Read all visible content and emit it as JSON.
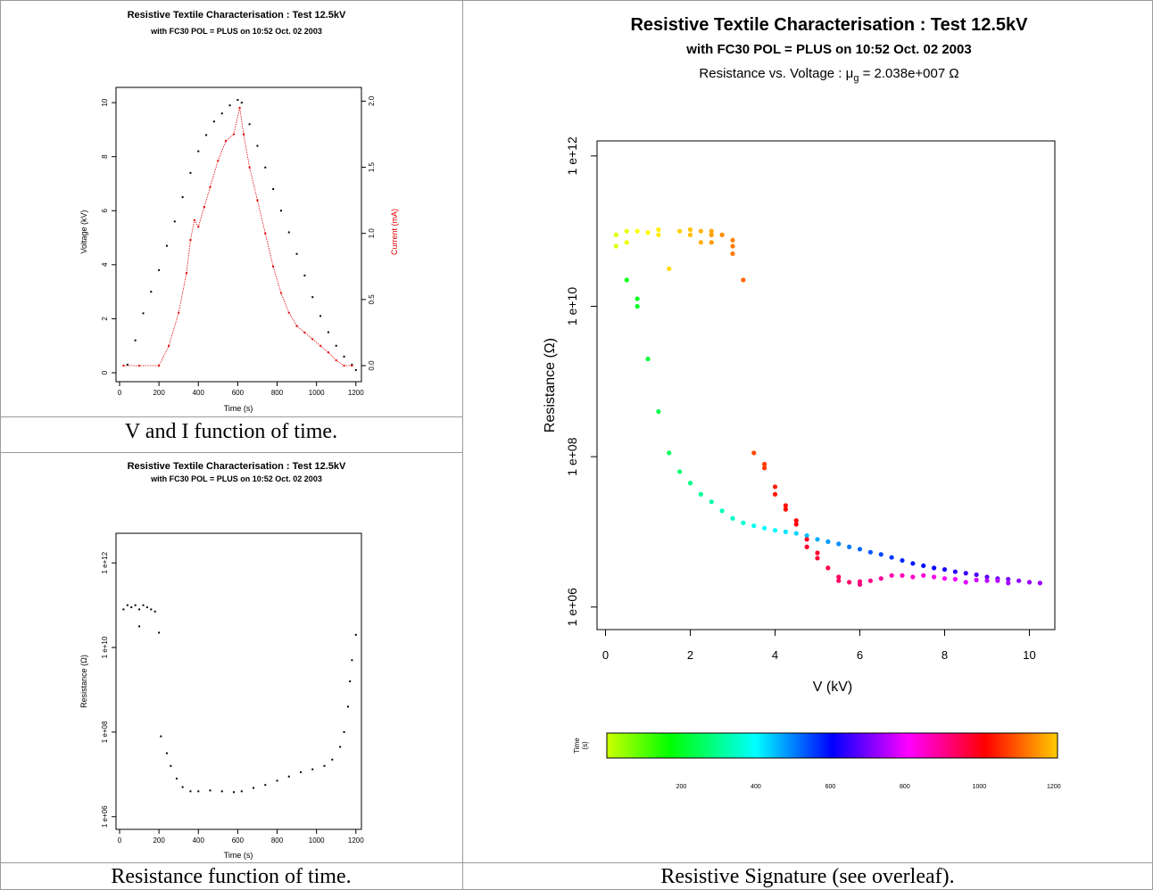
{
  "header": {
    "title": "Resistive Textile Characterisation : Test 12.5kV",
    "subtitle": "with FC30 POL = PLUS on 10:52 Oct. 02 2003"
  },
  "captions": {
    "vi": "V and I function of time.",
    "res": "Resistance function of time.",
    "sig": "Resistive Signature (see overleaf)."
  },
  "signature_subtitle_prefix": "Resistance vs. Voltage : ",
  "signature_subtitle_mu": "μ",
  "signature_subtitle_sub": "g",
  "signature_subtitle_suffix": " = 2.038e+007 Ω",
  "colorbar": {
    "label_line1": "Time",
    "label_line2": "(s)",
    "ticks": [
      "200",
      "400",
      "600",
      "800",
      "1000",
      "1200"
    ]
  },
  "chart_data": [
    {
      "id": "vi",
      "type": "scatter",
      "xlabel": "Time (s)",
      "ylabel": "Voltage (kV)",
      "ylabel_right": "Current (mA)",
      "xlim": [
        0,
        1210
      ],
      "ylim": [
        0,
        10.3
      ],
      "ylim_right": [
        0,
        2.05
      ],
      "x_ticks": [
        "0",
        "200",
        "400",
        "600",
        "800",
        "1000",
        "1200"
      ],
      "y_ticks": [
        "0",
        "2",
        "4",
        "6",
        "8",
        "10"
      ],
      "y_ticks_right": [
        "0.0",
        "0.5",
        "1.0",
        "1.5",
        "2.0"
      ],
      "series": [
        {
          "axis": "left",
          "color": "#000000",
          "points": [
            [
              40,
              0.3
            ],
            [
              80,
              1.2
            ],
            [
              120,
              2.2
            ],
            [
              160,
              3.0
            ],
            [
              200,
              3.8
            ],
            [
              240,
              4.7
            ],
            [
              280,
              5.6
            ],
            [
              320,
              6.5
            ],
            [
              360,
              7.4
            ],
            [
              400,
              8.2
            ],
            [
              440,
              8.8
            ],
            [
              480,
              9.3
            ],
            [
              520,
              9.6
            ],
            [
              560,
              9.9
            ],
            [
              600,
              10.1
            ],
            [
              620,
              10.0
            ],
            [
              660,
              9.2
            ],
            [
              700,
              8.4
            ],
            [
              740,
              7.6
            ],
            [
              780,
              6.8
            ],
            [
              820,
              6.0
            ],
            [
              860,
              5.2
            ],
            [
              900,
              4.4
            ],
            [
              940,
              3.6
            ],
            [
              980,
              2.8
            ],
            [
              1020,
              2.1
            ],
            [
              1060,
              1.5
            ],
            [
              1100,
              1.0
            ],
            [
              1140,
              0.6
            ],
            [
              1180,
              0.3
            ],
            [
              1200,
              0.1
            ]
          ]
        },
        {
          "axis": "right",
          "color": "#e00000",
          "points": [
            [
              20,
              0.0
            ],
            [
              100,
              0.0
            ],
            [
              200,
              0.0
            ],
            [
              250,
              0.15
            ],
            [
              300,
              0.4
            ],
            [
              340,
              0.7
            ],
            [
              360,
              0.95
            ],
            [
              380,
              1.1
            ],
            [
              400,
              1.05
            ],
            [
              430,
              1.2
            ],
            [
              460,
              1.35
            ],
            [
              500,
              1.55
            ],
            [
              540,
              1.7
            ],
            [
              580,
              1.75
            ],
            [
              610,
              1.95
            ],
            [
              630,
              1.75
            ],
            [
              660,
              1.5
            ],
            [
              700,
              1.25
            ],
            [
              740,
              1.0
            ],
            [
              780,
              0.75
            ],
            [
              820,
              0.55
            ],
            [
              860,
              0.4
            ],
            [
              900,
              0.3
            ],
            [
              940,
              0.25
            ],
            [
              980,
              0.2
            ],
            [
              1020,
              0.15
            ],
            [
              1060,
              0.1
            ],
            [
              1100,
              0.04
            ],
            [
              1140,
              0.0
            ],
            [
              1180,
              0.0
            ]
          ]
        }
      ]
    },
    {
      "id": "res",
      "type": "scatter",
      "xlabel": "Time (s)",
      "ylabel": "Resistance (Ω)",
      "xlim": [
        0,
        1210
      ],
      "ylim": [
        5.7,
        12.7
      ],
      "x_ticks": [
        "0",
        "200",
        "400",
        "600",
        "800",
        "1000",
        "1200"
      ],
      "y_ticks": [
        {
          "v": 6,
          "label": "1 e+06"
        },
        {
          "v": 8,
          "label": "1 e+08"
        },
        {
          "v": 10,
          "label": "1 e+10"
        },
        {
          "v": 12,
          "label": "1 e+12"
        }
      ],
      "series": [
        {
          "color": "#000000",
          "points": [
            [
              20,
              10.9
            ],
            [
              40,
              11.0
            ],
            [
              60,
              10.95
            ],
            [
              80,
              11.0
            ],
            [
              100,
              10.9
            ],
            [
              120,
              11.0
            ],
            [
              140,
              10.95
            ],
            [
              160,
              10.9
            ],
            [
              180,
              10.85
            ],
            [
              100,
              10.5
            ],
            [
              200,
              10.35
            ],
            [
              210,
              7.9
            ],
            [
              240,
              7.5
            ],
            [
              260,
              7.2
            ],
            [
              290,
              6.9
            ],
            [
              320,
              6.7
            ],
            [
              360,
              6.6
            ],
            [
              400,
              6.6
            ],
            [
              460,
              6.62
            ],
            [
              520,
              6.6
            ],
            [
              580,
              6.58
            ],
            [
              620,
              6.6
            ],
            [
              680,
              6.68
            ],
            [
              740,
              6.75
            ],
            [
              800,
              6.85
            ],
            [
              860,
              6.95
            ],
            [
              920,
              7.05
            ],
            [
              980,
              7.12
            ],
            [
              1040,
              7.2
            ],
            [
              1080,
              7.35
            ],
            [
              1120,
              7.65
            ],
            [
              1140,
              8.0
            ],
            [
              1160,
              8.6
            ],
            [
              1170,
              9.2
            ],
            [
              1180,
              9.7
            ],
            [
              1200,
              10.3
            ]
          ]
        }
      ]
    },
    {
      "id": "sig",
      "type": "scatter",
      "xlabel": "V (kV)",
      "ylabel": "Resistance (Ω)",
      "xlim": [
        -0.2,
        10.6
      ],
      "ylim": [
        5.7,
        12.2
      ],
      "x_ticks": [
        "0",
        "2",
        "4",
        "6",
        "8",
        "10"
      ],
      "y_ticks": [
        {
          "v": 6,
          "label": "1 e+06"
        },
        {
          "v": 8,
          "label": "1 e+08"
        },
        {
          "v": 10,
          "label": "1 e+10"
        },
        {
          "v": 12,
          "label": "1 e+12"
        }
      ],
      "points": [
        [
          0.25,
          10.95,
          30
        ],
        [
          0.25,
          10.8,
          30
        ],
        [
          0.5,
          11.0,
          40
        ],
        [
          0.5,
          10.85,
          45
        ],
        [
          0.75,
          11.0,
          55
        ],
        [
          1.0,
          10.98,
          60
        ],
        [
          1.25,
          11.02,
          70
        ],
        [
          1.25,
          10.95,
          75
        ],
        [
          1.5,
          10.5,
          90
        ],
        [
          1.75,
          11.0,
          100
        ],
        [
          2.0,
          11.02,
          110
        ],
        [
          2.0,
          10.95,
          115
        ],
        [
          2.25,
          11.0,
          125
        ],
        [
          2.25,
          10.85,
          130
        ],
        [
          2.5,
          11.0,
          140
        ],
        [
          2.5,
          10.95,
          145
        ],
        [
          2.5,
          10.85,
          150
        ],
        [
          2.75,
          10.95,
          160
        ],
        [
          3.0,
          10.88,
          170
        ],
        [
          3.0,
          10.8,
          175
        ],
        [
          3.0,
          10.7,
          180
        ],
        [
          3.25,
          10.35,
          195
        ],
        [
          0.5,
          10.35,
          1195
        ],
        [
          0.75,
          10.1,
          1185
        ],
        [
          0.75,
          10.0,
          1180
        ],
        [
          1.0,
          9.3,
          1160
        ],
        [
          1.25,
          8.6,
          1140
        ],
        [
          1.5,
          8.05,
          1120
        ],
        [
          1.75,
          7.8,
          1110
        ],
        [
          2.0,
          7.65,
          1090
        ],
        [
          2.25,
          7.5,
          1075
        ],
        [
          2.5,
          7.4,
          1060
        ],
        [
          2.75,
          7.28,
          1045
        ],
        [
          3.0,
          7.18,
          1030
        ],
        [
          3.25,
          7.12,
          1015
        ],
        [
          3.5,
          7.08,
          1000
        ],
        [
          3.75,
          7.05,
          985
        ],
        [
          4.0,
          7.02,
          970
        ],
        [
          4.25,
          7.0,
          955
        ],
        [
          4.5,
          6.98,
          940
        ],
        [
          4.75,
          6.95,
          920
        ],
        [
          5.0,
          6.9,
          905
        ],
        [
          5.25,
          6.87,
          890
        ],
        [
          5.5,
          6.84,
          875
        ],
        [
          5.75,
          6.8,
          860
        ],
        [
          6.0,
          6.77,
          845
        ],
        [
          6.25,
          6.73,
          830
        ],
        [
          6.5,
          6.7,
          815
        ],
        [
          6.75,
          6.66,
          800
        ],
        [
          7.0,
          6.62,
          785
        ],
        [
          7.25,
          6.58,
          770
        ],
        [
          7.5,
          6.55,
          755
        ],
        [
          7.75,
          6.52,
          740
        ],
        [
          8.0,
          6.5,
          725
        ],
        [
          8.25,
          6.47,
          710
        ],
        [
          8.5,
          6.45,
          695
        ],
        [
          8.75,
          6.43,
          680
        ],
        [
          9.0,
          6.4,
          665
        ],
        [
          9.25,
          6.38,
          650
        ],
        [
          9.5,
          6.37,
          635
        ],
        [
          9.75,
          6.35,
          620
        ],
        [
          10.0,
          6.33,
          610
        ],
        [
          10.25,
          6.32,
          605
        ],
        [
          3.5,
          8.05,
          220
        ],
        [
          3.75,
          7.85,
          240
        ],
        [
          3.75,
          7.9,
          235
        ],
        [
          4.0,
          7.6,
          260
        ],
        [
          4.0,
          7.5,
          265
        ],
        [
          4.25,
          7.3,
          280
        ],
        [
          4.25,
          7.35,
          278
        ],
        [
          4.5,
          7.15,
          295
        ],
        [
          4.5,
          7.1,
          300
        ],
        [
          4.75,
          6.9,
          320
        ],
        [
          4.75,
          6.8,
          325
        ],
        [
          5.0,
          6.65,
          340
        ],
        [
          5.0,
          6.72,
          335
        ],
        [
          5.25,
          6.52,
          355
        ],
        [
          5.5,
          6.4,
          370
        ],
        [
          5.5,
          6.35,
          375
        ],
        [
          5.75,
          6.33,
          385
        ],
        [
          6.0,
          6.34,
          395
        ],
        [
          6.0,
          6.3,
          400
        ],
        [
          6.25,
          6.35,
          410
        ],
        [
          6.5,
          6.38,
          425
        ],
        [
          6.75,
          6.42,
          440
        ],
        [
          7.0,
          6.42,
          455
        ],
        [
          7.25,
          6.4,
          470
        ],
        [
          7.5,
          6.42,
          485
        ],
        [
          7.75,
          6.4,
          500
        ],
        [
          8.0,
          6.38,
          515
        ],
        [
          8.25,
          6.37,
          530
        ],
        [
          8.5,
          6.33,
          545
        ],
        [
          8.75,
          6.36,
          560
        ],
        [
          9.0,
          6.35,
          575
        ],
        [
          9.25,
          6.35,
          585
        ],
        [
          9.5,
          6.32,
          595
        ]
      ]
    }
  ]
}
